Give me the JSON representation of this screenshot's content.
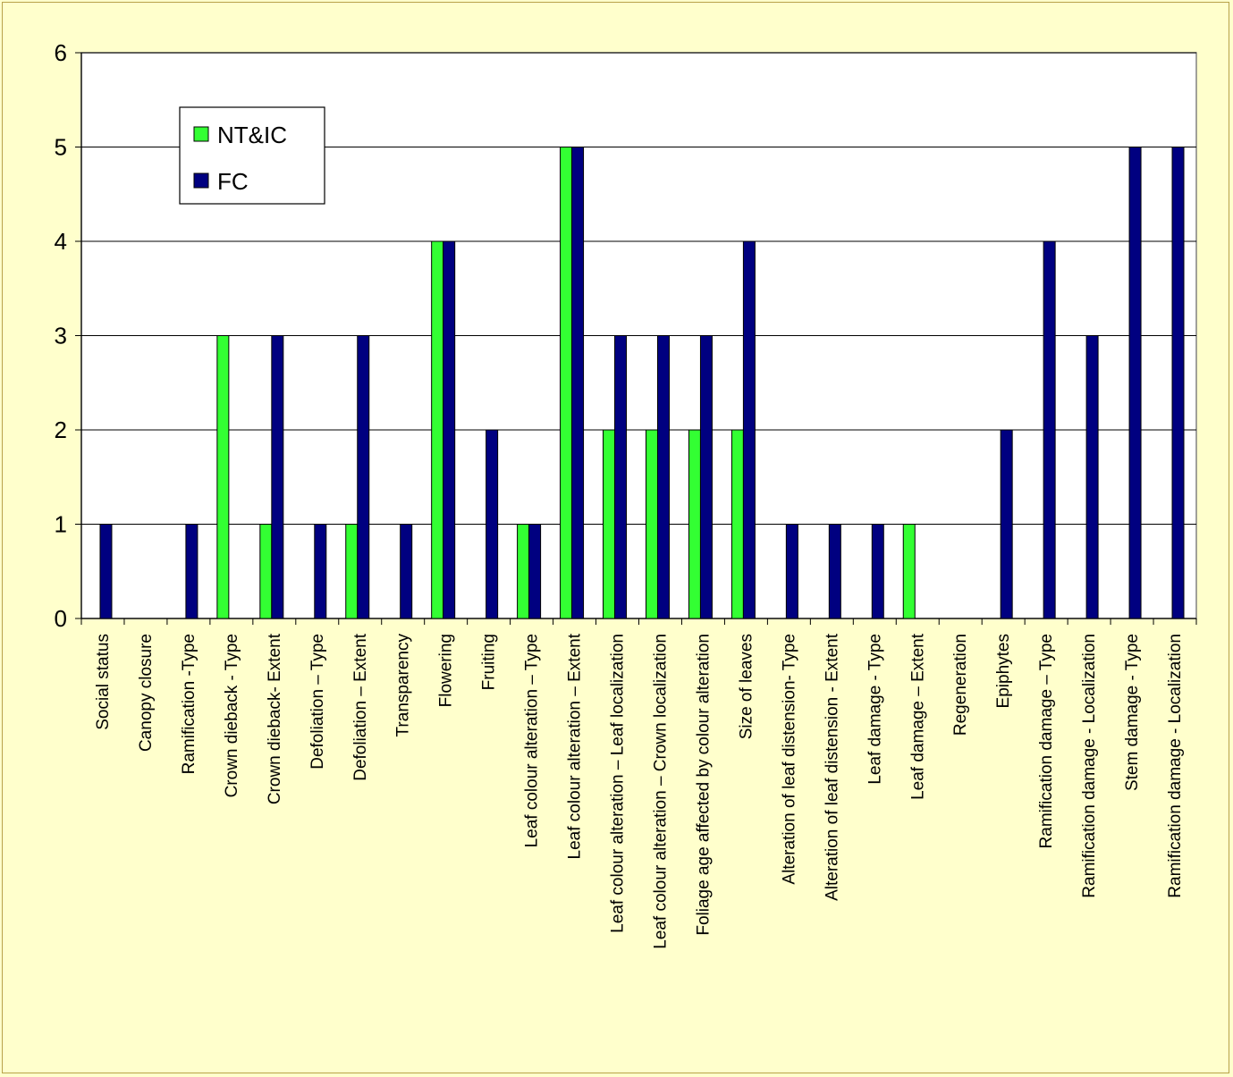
{
  "chart_data": {
    "type": "bar",
    "title": "",
    "xlabel": "",
    "ylabel": "",
    "ylim": [
      0,
      6
    ],
    "yticks": [
      0,
      1,
      2,
      3,
      4,
      5,
      6
    ],
    "grid": true,
    "legend_position": "top-left",
    "categories": [
      "Social status",
      "Canopy closure",
      "Ramification -Type",
      "Crown dieback - Type",
      "Crown dieback- Extent",
      "Defoliation – Type",
      "Defoliation – Extent",
      "Transparency",
      "Flowering",
      "Fruiting",
      "Leaf colour alteration – Type",
      "Leaf colour alteration – Extent",
      "Leaf colour alteration – Leaf localization",
      "Leaf colour alteration – Crown localization",
      "Foliage age affected by colour alteration",
      "Size of leaves",
      "Alteration of leaf distension- Type",
      "Alteration of leaf distension - Extent",
      "Leaf damage - Type",
      "Leaf damage – Extent",
      "Regeneration",
      "Epiphytes",
      "Ramification damage – Type",
      "Ramification damage - Localization",
      "Stem damage - Type",
      "Ramification damage - Localization"
    ],
    "series": [
      {
        "name": "NT&IC",
        "color": "#33ff33",
        "values": [
          0,
          0,
          0,
          3,
          1,
          0,
          1,
          0,
          4,
          0,
          1,
          5,
          2,
          2,
          2,
          2,
          0,
          0,
          0,
          1,
          0,
          0,
          0,
          0,
          0,
          0
        ]
      },
      {
        "name": "FC",
        "color": "#000080",
        "values": [
          1,
          0,
          1,
          0,
          3,
          1,
          3,
          1,
          4,
          2,
          1,
          5,
          3,
          3,
          3,
          4,
          1,
          1,
          1,
          0,
          0,
          2,
          4,
          3,
          5,
          5
        ]
      }
    ]
  }
}
